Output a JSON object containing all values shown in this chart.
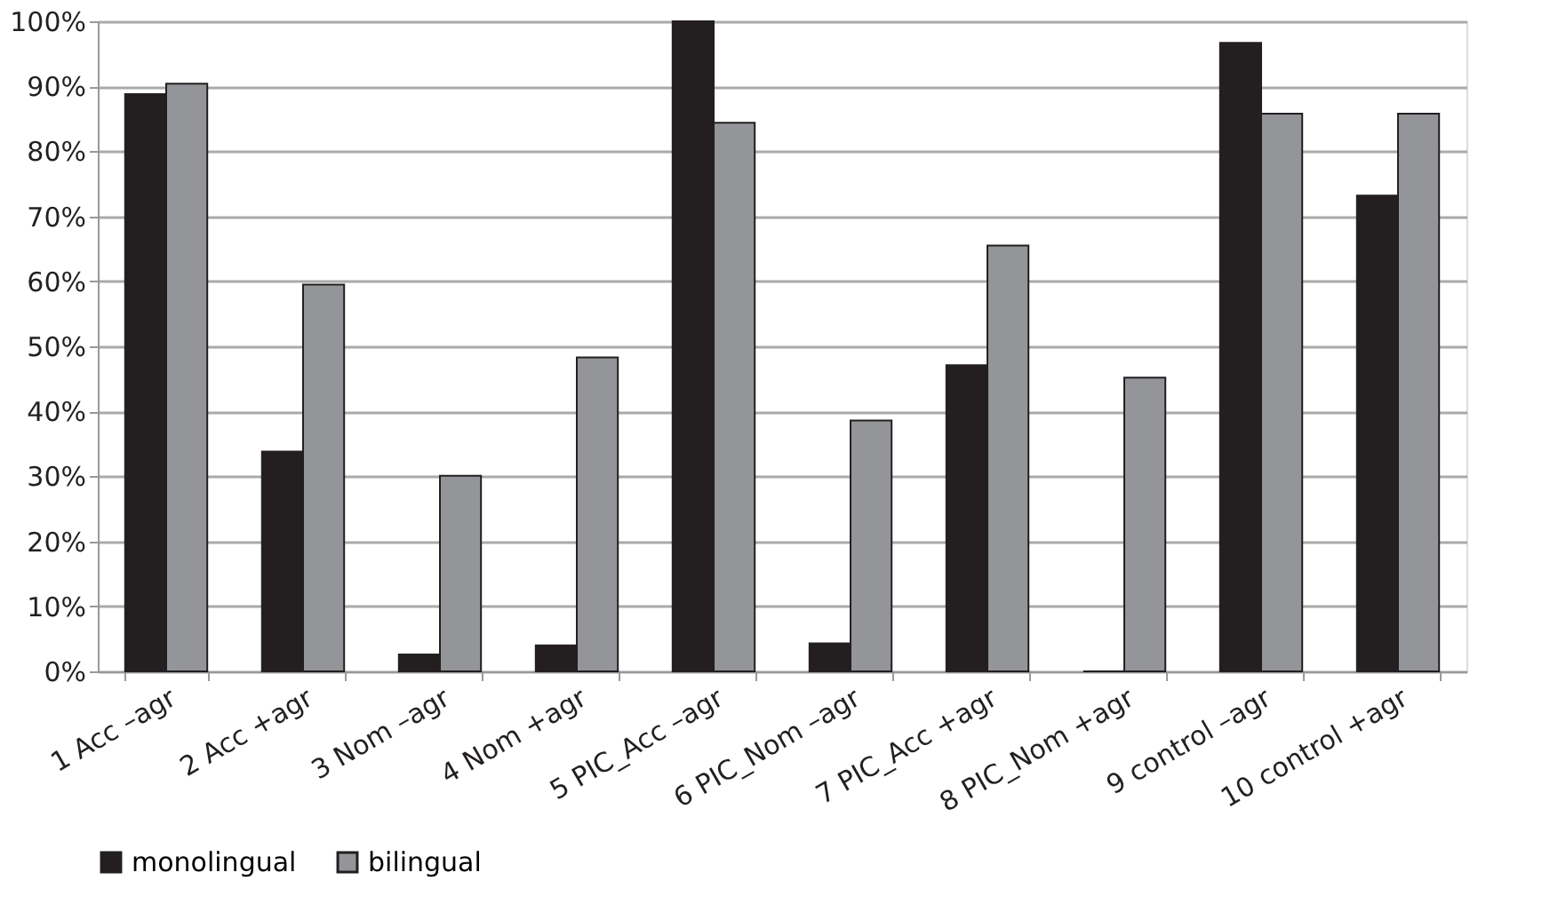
{
  "chart_data": {
    "type": "bar",
    "categories": [
      "1 Acc –agr",
      "2 Acc +agr",
      "3 Nom –agr",
      "4 Nom +agr",
      "5 PIC_Acc –agr",
      "6 PIC_Nom –agr",
      "7 PIC_Acc +agr",
      "8 PIC_Nom +agr",
      "9 control –agr",
      "10 control +agr"
    ],
    "series": [
      {
        "name": "monolingual",
        "color": "#231f20",
        "values": [
          88.8,
          33.8,
          2.6,
          4.0,
          100,
          4.3,
          47.1,
          0,
          96.7,
          73.2
        ]
      },
      {
        "name": "bilingual",
        "color": "#939598",
        "values": [
          90.4,
          59.5,
          30.1,
          48.3,
          84.4,
          38.6,
          65.5,
          45.2,
          85.8,
          85.8
        ]
      }
    ],
    "ylim": [
      0,
      100
    ],
    "yticks": [
      {
        "value": 0,
        "label": "0%"
      },
      {
        "value": 10,
        "label": "10%"
      },
      {
        "value": 20,
        "label": "20%"
      },
      {
        "value": 30,
        "label": "30%"
      },
      {
        "value": 40,
        "label": "40%"
      },
      {
        "value": 50,
        "label": "50%"
      },
      {
        "value": 60,
        "label": "60%"
      },
      {
        "value": 70,
        "label": "70%"
      },
      {
        "value": 80,
        "label": "80%"
      },
      {
        "value": 90,
        "label": "90%"
      },
      {
        "value": 100,
        "label": "100%"
      }
    ],
    "grid": "y",
    "legend": "bottom"
  }
}
